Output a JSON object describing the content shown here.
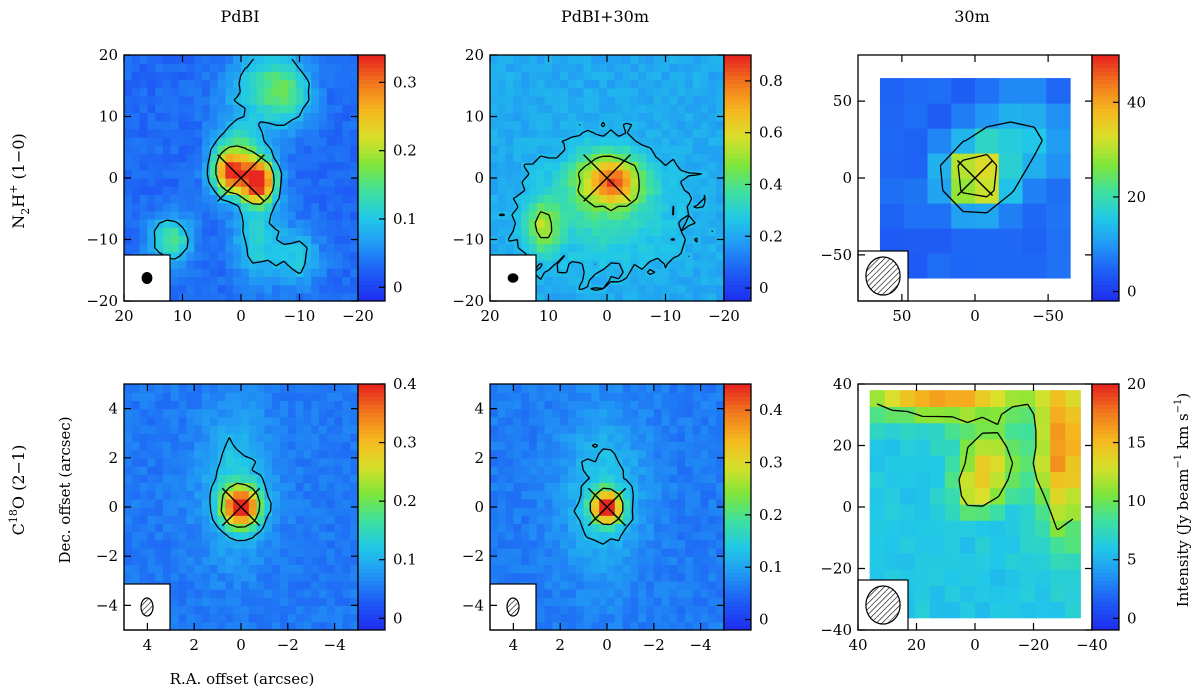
{
  "figure": {
    "column_titles": [
      "PdBI",
      "PdBI+30m",
      "30m"
    ],
    "row_labels": [
      {
        "main": "N",
        "sub": "2",
        "rest": "H",
        "sup": "+",
        "tail": " (1−0)"
      },
      {
        "main": "C",
        "sup": "18",
        "rest": "O (2−1)"
      }
    ],
    "xlabel": "R.A. offset (arcsec)",
    "ylabel": "Dec. offset (arcsec)",
    "colorbar_label": {
      "pre": "Intensity (Jy beam",
      "sup1": "−1",
      "mid": " km s",
      "sup2": "−1",
      "post": ")"
    }
  },
  "colors": {
    "ramp": [
      "#1e2ff0",
      "#1e5cf5",
      "#2196f5",
      "#21c8e8",
      "#3ee0a0",
      "#7ee63a",
      "#d8e02a",
      "#f5b81e",
      "#f27a1e",
      "#e8281e"
    ],
    "contour": "#000000",
    "frame": "#000000",
    "background": "#ffffff"
  },
  "chart_data": [
    {
      "type": "heatmap",
      "panel": "PdBI N2H+ (1-0)",
      "xlim": [
        20,
        -20
      ],
      "ylim": [
        -20,
        20
      ],
      "xticks": [
        "20",
        "10",
        "0",
        "−10",
        "−20"
      ],
      "yticks": [
        "20",
        "10",
        "0",
        "−10",
        "−20"
      ],
      "colorbar": {
        "range": [
          -0.02,
          0.34
        ],
        "ticks": [
          {
            "v": 0.3,
            "t": "0.3"
          },
          {
            "v": 0.2,
            "t": "0.2"
          },
          {
            "v": 0.1,
            "t": "0.1"
          },
          {
            "v": 0,
            "t": "0"
          }
        ]
      },
      "grid": 30,
      "base": 0.03,
      "peaks": [
        {
          "x": -3,
          "y": -0.5,
          "amp": 0.31,
          "sx": 2,
          "sy": 2.5
        },
        {
          "x": 2,
          "y": 1,
          "amp": 0.24,
          "sx": 2,
          "sy": 2.5
        },
        {
          "x": 0,
          "y": 4,
          "amp": 0.1,
          "sx": 3,
          "sy": 4
        },
        {
          "x": 12,
          "y": -10,
          "amp": 0.12,
          "sx": 2.5,
          "sy": 2.5
        },
        {
          "x": -8,
          "y": 14,
          "amp": 0.1,
          "sx": 3,
          "sy": 4
        },
        {
          "x": -3,
          "y": 15,
          "amp": 0.08,
          "sx": 4,
          "sy": 4
        },
        {
          "x": -3,
          "y": -10,
          "amp": 0.08,
          "sx": 3,
          "sy": 5
        },
        {
          "x": -10,
          "y": -13,
          "amp": 0.07,
          "sx": 2.5,
          "sy": 3
        }
      ],
      "cross": {
        "x": 0,
        "y": 0,
        "arm": 4
      },
      "beam": {
        "w": 0.8,
        "h": 0.9,
        "filled": true
      }
    },
    {
      "type": "heatmap",
      "panel": "PdBI+30m N2H+ (1-0)",
      "xlim": [
        20,
        -20
      ],
      "ylim": [
        -20,
        20
      ],
      "xticks": [
        "20",
        "10",
        "0",
        "−10",
        "−20"
      ],
      "yticks": [
        "20",
        "10",
        "0",
        "−10",
        "−20"
      ],
      "colorbar": {
        "range": [
          -0.05,
          0.9
        ],
        "ticks": [
          {
            "v": 0.8,
            "t": "0.8"
          },
          {
            "v": 0.6,
            "t": "0.6"
          },
          {
            "v": 0.4,
            "t": "0.4"
          },
          {
            "v": 0.2,
            "t": "0.2"
          },
          {
            "v": 0,
            "t": "0"
          }
        ]
      },
      "grid": 30,
      "base": 0.2,
      "peaks": [
        {
          "x": 0,
          "y": 0,
          "amp": 0.4,
          "sx": 4,
          "sy": 3
        },
        {
          "x": -2,
          "y": -1,
          "amp": 0.2,
          "sx": 2,
          "sy": 2
        },
        {
          "x": 11,
          "y": -8,
          "amp": 0.3,
          "sx": 2,
          "sy": 3
        },
        {
          "x": 0,
          "y": -5,
          "amp": 0.15,
          "sx": 8,
          "sy": 6
        }
      ],
      "cross": {
        "x": 0,
        "y": 0,
        "arm": 4
      },
      "beam": {
        "w": 0.8,
        "h": 0.7,
        "filled": true
      }
    },
    {
      "type": "heatmap",
      "panel": "30m N2H+ (1-0)",
      "xlim": [
        80,
        -80
      ],
      "ylim": [
        -80,
        80
      ],
      "xticks": [
        "50",
        "0",
        "−50"
      ],
      "yticks": [
        "50",
        "0",
        "−50"
      ],
      "xtickvals": [
        50,
        0,
        -50
      ],
      "ytickvals": [
        50,
        0,
        -50
      ],
      "colorbar": {
        "range": [
          -2,
          50
        ],
        "ticks": [
          {
            "v": 40,
            "t": "40"
          },
          {
            "v": 20,
            "t": "20"
          },
          {
            "v": 0,
            "t": "0"
          }
        ]
      },
      "grid": 8,
      "map_extent": {
        "x": [
          65,
          -65
        ],
        "y": [
          -65,
          65
        ]
      },
      "base": 5,
      "peaks": [
        {
          "x": 0,
          "y": 0,
          "amp": 34,
          "sx": 14,
          "sy": 14
        },
        {
          "x": -30,
          "y": 25,
          "amp": 10,
          "sx": 20,
          "sy": 20
        }
      ],
      "cross": {
        "x": 0,
        "y": 0,
        "arm": 12
      },
      "beam": {
        "w": 0.9,
        "h": 1,
        "filled": false
      }
    },
    {
      "type": "heatmap",
      "panel": "PdBI C18O (2-1)",
      "xlim": [
        5,
        -5
      ],
      "ylim": [
        -5,
        5
      ],
      "xticks": [
        "4",
        "2",
        "0",
        "−2",
        "−4"
      ],
      "yticks": [
        "4",
        "2",
        "0",
        "−2",
        "−4"
      ],
      "colorbar": {
        "range": [
          -0.02,
          0.4
        ],
        "ticks": [
          {
            "v": 0.4,
            "t": "0.4"
          },
          {
            "v": 0.3,
            "t": "0.3"
          },
          {
            "v": 0.2,
            "t": "0.2"
          },
          {
            "v": 0.1,
            "t": "0.1"
          },
          {
            "v": 0,
            "t": "0"
          }
        ]
      },
      "grid": 30,
      "base": 0.05,
      "peaks": [
        {
          "x": 0,
          "y": 0,
          "amp": 0.34,
          "sx": 0.55,
          "sy": 0.55
        },
        {
          "x": 0.2,
          "y": 1,
          "amp": 0.08,
          "sx": 1,
          "sy": 2
        }
      ],
      "cross": {
        "x": 0,
        "y": 0,
        "arm": 0.8
      },
      "beam": {
        "w": 0.6,
        "h": 0.9,
        "filled": false
      }
    },
    {
      "type": "heatmap",
      "panel": "PdBI+30m C18O (2-1)",
      "xlim": [
        5,
        -5
      ],
      "ylim": [
        -5,
        5
      ],
      "xticks": [
        "4",
        "2",
        "0",
        "−2",
        "−4"
      ],
      "yticks": [
        "4",
        "2",
        "0",
        "−2",
        "−4"
      ],
      "colorbar": {
        "range": [
          -0.02,
          0.45
        ],
        "ticks": [
          {
            "v": 0.4,
            "t": "0.4"
          },
          {
            "v": 0.3,
            "t": "0.3"
          },
          {
            "v": 0.2,
            "t": "0.2"
          },
          {
            "v": 0.1,
            "t": "0.1"
          },
          {
            "v": 0,
            "t": "0"
          }
        ]
      },
      "grid": 30,
      "base": 0.06,
      "peaks": [
        {
          "x": 0,
          "y": 0,
          "amp": 0.38,
          "sx": 0.45,
          "sy": 0.45
        },
        {
          "x": 0.2,
          "y": 0.5,
          "amp": 0.08,
          "sx": 1.2,
          "sy": 2.2
        }
      ],
      "cross": {
        "x": 0,
        "y": 0,
        "arm": 0.8
      },
      "beam": {
        "w": 0.6,
        "h": 0.9,
        "filled": false
      }
    },
    {
      "type": "heatmap",
      "panel": "30m C18O (2-1)",
      "xlim": [
        40,
        -40
      ],
      "ylim": [
        -40,
        40
      ],
      "xticks": [
        "40",
        "20",
        "0",
        "−20",
        "−40"
      ],
      "yticks": [
        "40",
        "20",
        "0",
        "−20",
        "−40"
      ],
      "colorbar": {
        "range": [
          -1,
          20
        ],
        "ticks": [
          {
            "v": 20,
            "t": "20"
          },
          {
            "v": 15,
            "t": "15"
          },
          {
            "v": 10,
            "t": "10"
          },
          {
            "v": 5,
            "t": "5"
          },
          {
            "v": 0,
            "t": "0"
          }
        ]
      },
      "grid": 14,
      "map_extent": {
        "x": [
          36,
          -36
        ],
        "y": [
          -36,
          38
        ]
      },
      "base": 6,
      "peaks": [
        {
          "x": 10,
          "y": 40,
          "amp": 13,
          "sx": 20,
          "sy": 7
        },
        {
          "x": -30,
          "y": 20,
          "amp": 11,
          "sx": 6,
          "sy": 20
        },
        {
          "x": -5,
          "y": 15,
          "amp": 7,
          "sx": 8,
          "sy": 8
        },
        {
          "x": 0,
          "y": 5,
          "amp": 6,
          "sx": 5,
          "sy": 5
        }
      ],
      "cross": null,
      "beam": {
        "w": 0.9,
        "h": 1,
        "filled": false
      }
    }
  ]
}
